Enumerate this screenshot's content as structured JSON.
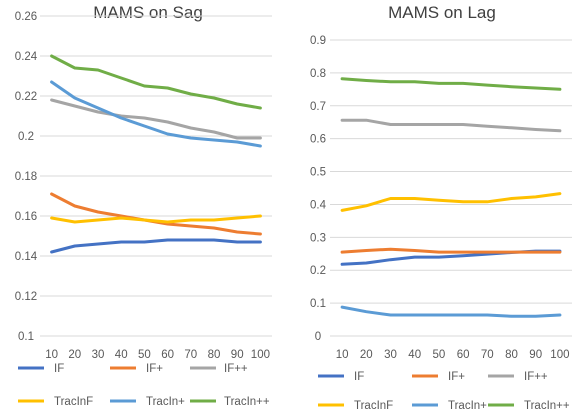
{
  "chart_data": [
    {
      "type": "line",
      "title": "MAMS on Sag",
      "xlabel": "",
      "ylabel": "",
      "categories": [
        "10",
        "20",
        "30",
        "40",
        "50",
        "60",
        "70",
        "80",
        "90",
        "100"
      ],
      "ylim": [
        0.1,
        0.26
      ],
      "yticks": [
        "0.1",
        "0.12",
        "0.14",
        "0.16",
        "0.18",
        "0.2",
        "0.22",
        "0.24",
        "0.26"
      ],
      "ytick_values": [
        0.1,
        0.12,
        0.14,
        0.16,
        0.18,
        0.2,
        0.22,
        0.24,
        0.26
      ],
      "grid": true,
      "legend_position": "bottom",
      "series": [
        {
          "name": "IF",
          "color": "#4472C4",
          "values": [
            0.142,
            0.145,
            0.146,
            0.147,
            0.147,
            0.148,
            0.148,
            0.148,
            0.147,
            0.147
          ]
        },
        {
          "name": "IF+",
          "color": "#ED7D31",
          "values": [
            0.171,
            0.165,
            0.162,
            0.16,
            0.158,
            0.156,
            0.155,
            0.154,
            0.152,
            0.151
          ]
        },
        {
          "name": "IF++",
          "color": "#A5A5A5",
          "values": [
            0.218,
            0.215,
            0.212,
            0.21,
            0.209,
            0.207,
            0.204,
            0.202,
            0.199,
            0.199
          ]
        },
        {
          "name": "TracInF",
          "color": "#FFC000",
          "values": [
            0.159,
            0.157,
            0.158,
            0.159,
            0.158,
            0.157,
            0.158,
            0.158,
            0.159,
            0.16
          ]
        },
        {
          "name": "TracIn+",
          "color": "#5B9BD5",
          "values": [
            0.227,
            0.219,
            0.214,
            0.209,
            0.205,
            0.201,
            0.199,
            0.198,
            0.197,
            0.195
          ]
        },
        {
          "name": "TracIn++",
          "color": "#70AD47",
          "values": [
            0.24,
            0.234,
            0.233,
            0.229,
            0.225,
            0.224,
            0.221,
            0.219,
            0.216,
            0.214
          ]
        }
      ]
    },
    {
      "type": "line",
      "title": "MAMS on Lag",
      "xlabel": "",
      "ylabel": "",
      "categories": [
        "10",
        "20",
        "30",
        "40",
        "50",
        "60",
        "70",
        "80",
        "90",
        "100"
      ],
      "ylim": [
        0,
        0.9
      ],
      "yticks": [
        "0",
        "0.1",
        "0.2",
        "0.3",
        "0.4",
        "0.5",
        "0.6",
        "0.7",
        "0.8",
        "0.9"
      ],
      "ytick_values": [
        0,
        0.1,
        0.2,
        0.3,
        0.4,
        0.5,
        0.6,
        0.7,
        0.8,
        0.9
      ],
      "grid": true,
      "legend_position": "bottom",
      "series": [
        {
          "name": "IF",
          "color": "#4472C4",
          "values": [
            0.218,
            0.222,
            0.232,
            0.24,
            0.24,
            0.244,
            0.249,
            0.254,
            0.258,
            0.258
          ]
        },
        {
          "name": "IF+",
          "color": "#ED7D31",
          "values": [
            0.255,
            0.26,
            0.264,
            0.26,
            0.255,
            0.255,
            0.255,
            0.255,
            0.255,
            0.255
          ]
        },
        {
          "name": "IF++",
          "color": "#A5A5A5",
          "values": [
            0.656,
            0.656,
            0.643,
            0.643,
            0.643,
            0.643,
            0.638,
            0.633,
            0.628,
            0.624
          ]
        },
        {
          "name": "TracInF",
          "color": "#FFC000",
          "values": [
            0.382,
            0.396,
            0.418,
            0.418,
            0.413,
            0.408,
            0.408,
            0.418,
            0.423,
            0.433
          ]
        },
        {
          "name": "TracIn+",
          "color": "#5B9BD5",
          "values": [
            0.088,
            0.074,
            0.064,
            0.064,
            0.064,
            0.064,
            0.064,
            0.06,
            0.06,
            0.064
          ]
        },
        {
          "name": "TracIn++",
          "color": "#70AD47",
          "values": [
            0.782,
            0.777,
            0.773,
            0.773,
            0.768,
            0.768,
            0.763,
            0.758,
            0.754,
            0.75
          ]
        }
      ]
    }
  ]
}
